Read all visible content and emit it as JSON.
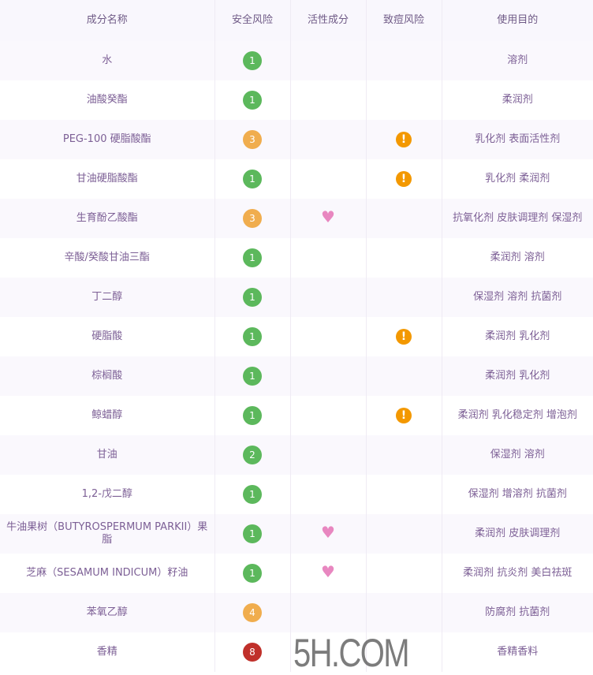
{
  "headers": [
    "成分名称",
    "安全风险",
    "活性成分",
    "致痘风险",
    "使用目的"
  ],
  "colors": {
    "risk_low": "#5cb85c",
    "risk_mid": "#f0ad4e",
    "risk_high": "#c0302a",
    "acne": "#f39800",
    "active": "#e887c0"
  },
  "rows": [
    {
      "name": "水",
      "risk": "1",
      "active": false,
      "acne": false,
      "purpose": "溶剂"
    },
    {
      "name": "油酸癸酯",
      "risk": "1",
      "active": false,
      "acne": false,
      "purpose": "柔润剂"
    },
    {
      "name": "PEG-100 硬脂酸酯",
      "risk": "3",
      "active": false,
      "acne": true,
      "purpose": "乳化剂 表面活性剂"
    },
    {
      "name": "甘油硬脂酸酯",
      "risk": "1",
      "active": false,
      "acne": true,
      "purpose": "乳化剂 柔润剂"
    },
    {
      "name": "生育酚乙酸酯",
      "risk": "3",
      "active": true,
      "acne": false,
      "purpose": "抗氧化剂 皮肤调理剂 保湿剂"
    },
    {
      "name": "辛酸/癸酸甘油三酯",
      "risk": "1",
      "active": false,
      "acne": false,
      "purpose": "柔润剂 溶剂"
    },
    {
      "name": "丁二醇",
      "risk": "1",
      "active": false,
      "acne": false,
      "purpose": "保湿剂 溶剂 抗菌剂"
    },
    {
      "name": "硬脂酸",
      "risk": "1",
      "active": false,
      "acne": true,
      "purpose": "柔润剂 乳化剂"
    },
    {
      "name": "棕榈酸",
      "risk": "1",
      "active": false,
      "acne": false,
      "purpose": "柔润剂 乳化剂"
    },
    {
      "name": "鲸蜡醇",
      "risk": "1",
      "active": false,
      "acne": true,
      "purpose": "柔润剂 乳化稳定剂 增泡剂"
    },
    {
      "name": "甘油",
      "risk": "2",
      "active": false,
      "acne": false,
      "purpose": "保湿剂 溶剂"
    },
    {
      "name": "1,2-戊二醇",
      "risk": "1",
      "active": false,
      "acne": false,
      "purpose": "保湿剂 增溶剂 抗菌剂"
    },
    {
      "name": "牛油果树（BUTYROSPERMUM PARKII）果脂",
      "risk": "1",
      "active": true,
      "acne": false,
      "purpose": "柔润剂 皮肤调理剂"
    },
    {
      "name": "芝麻（SESAMUM INDICUM）籽油",
      "risk": "1",
      "active": true,
      "acne": false,
      "purpose": "柔润剂 抗炎剂 美白祛斑"
    },
    {
      "name": "苯氧乙醇",
      "risk": "4",
      "active": false,
      "acne": false,
      "purpose": "防腐剂 抗菌剂"
    },
    {
      "name": "香精",
      "risk": "8",
      "active": false,
      "acne": false,
      "purpose": "香精香料"
    }
  ],
  "watermark": "5H.COM"
}
